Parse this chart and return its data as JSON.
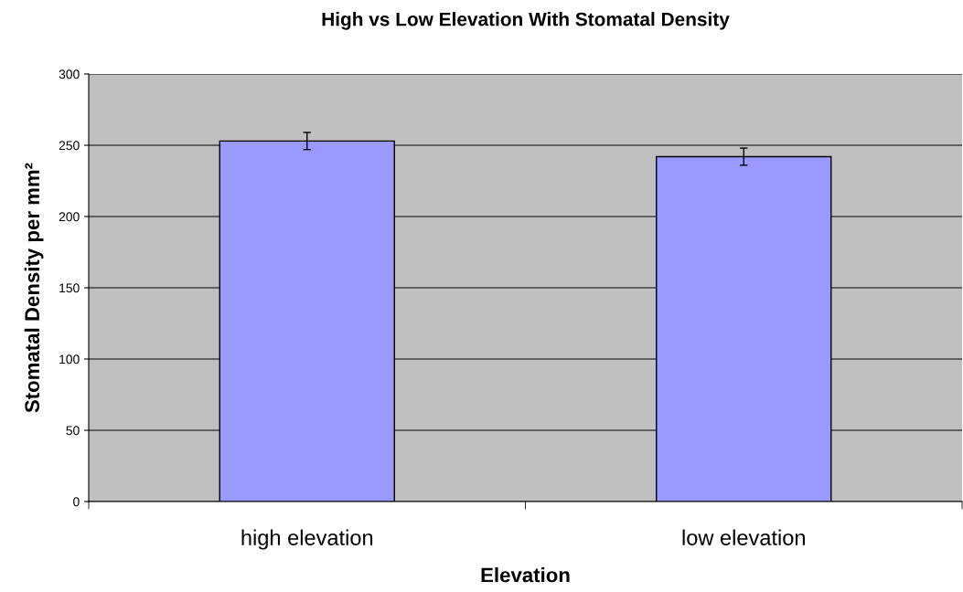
{
  "chart_data": {
    "type": "bar",
    "title": "High vs Low Elevation With Stomatal Density",
    "xlabel": "Elevation",
    "ylabel": "Stomatal Density per mm²",
    "categories": [
      "high elevation",
      "low elevation"
    ],
    "series": [
      {
        "color": "#9999ff",
        "values": [
          253,
          242
        ],
        "errors": [
          6,
          6
        ]
      }
    ],
    "ylim": [
      0,
      300
    ],
    "yticks": [
      0,
      50,
      100,
      150,
      200,
      250,
      300
    ],
    "grid": "y",
    "legend": false
  }
}
